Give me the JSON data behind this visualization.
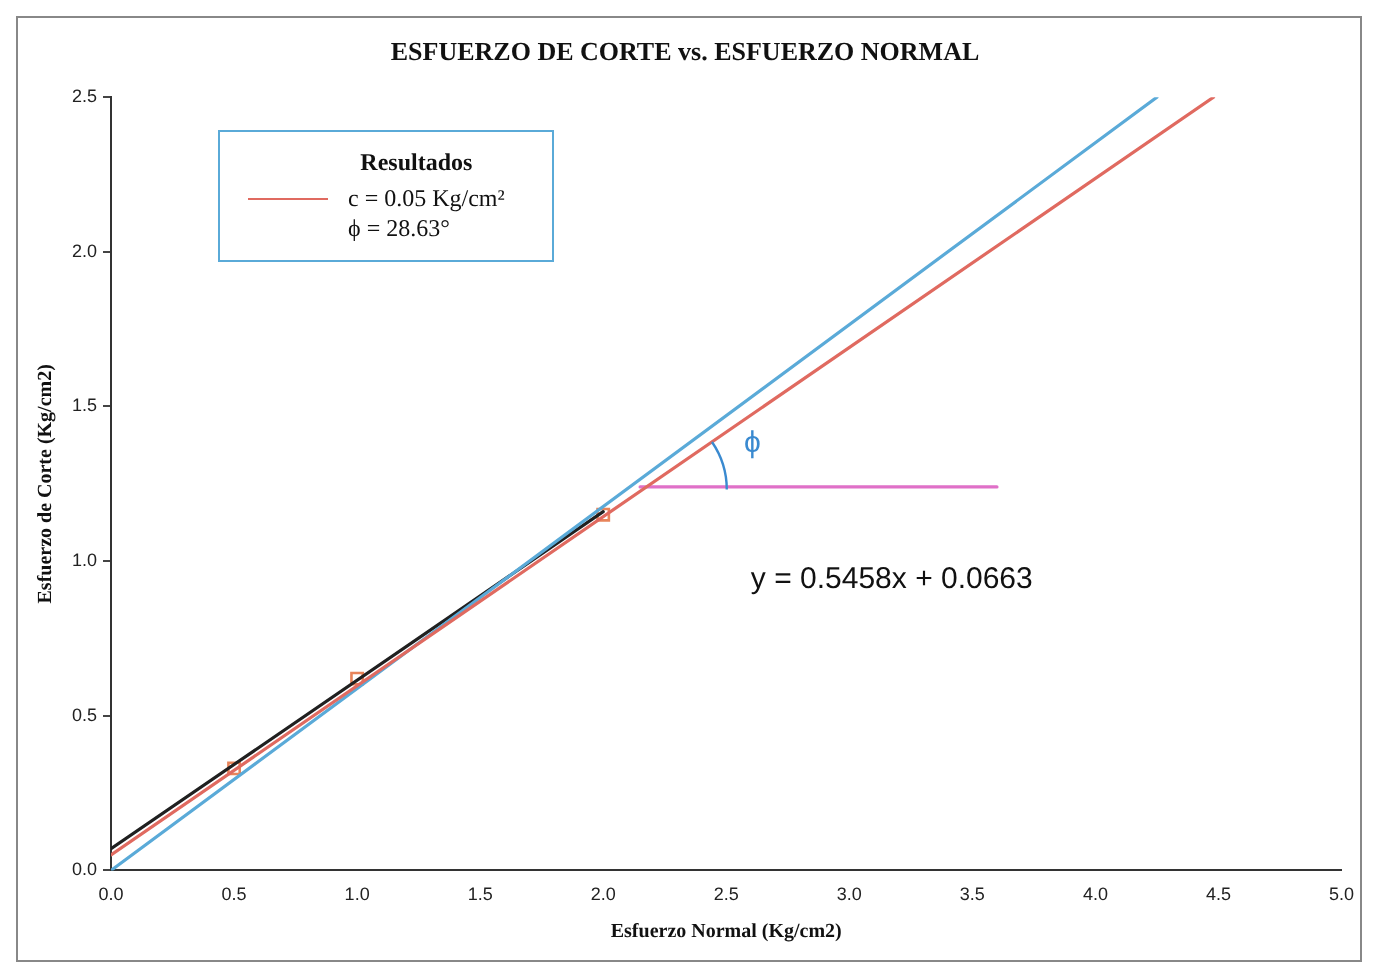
{
  "chart_data": {
    "type": "scatter",
    "title": "ESFUERZO DE CORTE vs. ESFUERZO NORMAL",
    "xlabel": "Esfuerzo Normal (Kg/cm2)",
    "ylabel": "Esfuerzo de Corte (Kg/cm2)",
    "legend_title": "Resultados",
    "legend": "top left",
    "grid": false,
    "xlim": [
      0,
      5
    ],
    "ylim": [
      0,
      2.5
    ],
    "xticks": [
      {
        "value": 0,
        "label": "0.0"
      },
      {
        "value": 0.5,
        "label": "0.5"
      },
      {
        "value": 1,
        "label": "1.0"
      },
      {
        "value": 1.5,
        "label": "1.5"
      },
      {
        "value": 2,
        "label": "2.0"
      },
      {
        "value": 2.5,
        "label": "2.5"
      },
      {
        "value": 3,
        "label": "3.0"
      },
      {
        "value": 3.5,
        "label": "3.5"
      },
      {
        "value": 4,
        "label": "4.0"
      },
      {
        "value": 4.5,
        "label": "4.5"
      },
      {
        "value": 5,
        "label": "5.0"
      }
    ],
    "yticks": [
      {
        "value": 0,
        "label": "0.0"
      },
      {
        "value": 0.5,
        "label": "0.5"
      },
      {
        "value": 1,
        "label": "1.0"
      },
      {
        "value": 1.5,
        "label": "1.5"
      },
      {
        "value": 2,
        "label": "2.0"
      },
      {
        "value": 2.5,
        "label": "2.5"
      }
    ],
    "series": [
      {
        "type": "line",
        "name": "c = 0.05 Kg/cm²",
        "color": "#e06a60",
        "x": [
          0,
          4.48
        ],
        "values": [
          0.05,
          2.5
        ],
        "line_style": "solid"
      },
      {
        "type": "line",
        "color": "#5aaad8",
        "x": [
          0,
          4.25
        ],
        "values": [
          0,
          2.5
        ],
        "line_style": "solid"
      },
      {
        "type": "line",
        "color": "#202020",
        "x": [
          0,
          2
        ],
        "values": [
          0.07,
          1.16
        ],
        "line_style": "solid"
      },
      {
        "color": "#e8845a",
        "marker": "square",
        "x": [
          0.5,
          1,
          2
        ],
        "values": [
          0.33,
          0.62,
          1.15
        ]
      },
      {
        "type": "line",
        "color": "#e070c8",
        "x": [
          2.15,
          3.6
        ],
        "values": [
          1.24,
          1.24
        ],
        "line_style": "solid"
      }
    ],
    "annotations": [
      "ϕ = 28.63°",
      "ϕ",
      "y = 0.5458x + 0.0663"
    ]
  }
}
